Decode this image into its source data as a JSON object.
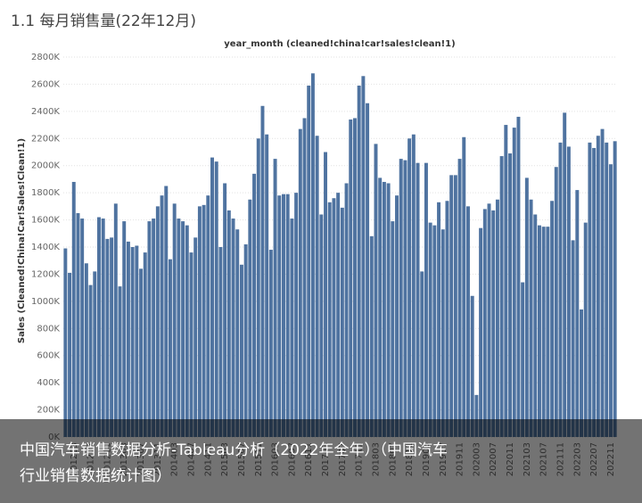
{
  "page_title": "1.1 每月销售量(22年12月)",
  "chart_data": {
    "type": "bar",
    "title": "year_month (cleaned!china!car!sales!clean!1)",
    "y_label": "Sales (Cleaned!China!Car!Sales!Clean!1)",
    "color": "#4f73a0",
    "grid": true,
    "ylim": [
      0,
      2800000
    ],
    "yticks": [
      {
        "value": 0,
        "label": "0K"
      },
      {
        "value": 200000,
        "label": "200K"
      },
      {
        "value": 400000,
        "label": "400K"
      },
      {
        "value": 600000,
        "label": "600K"
      },
      {
        "value": 800000,
        "label": "800K"
      },
      {
        "value": 1000000,
        "label": "1000K"
      },
      {
        "value": 1200000,
        "label": "1200K"
      },
      {
        "value": 1400000,
        "label": "1400K"
      },
      {
        "value": 1600000,
        "label": "1600K"
      },
      {
        "value": 1800000,
        "label": "1800K"
      },
      {
        "value": 2000000,
        "label": "2000K"
      },
      {
        "value": 2200000,
        "label": "2200K"
      },
      {
        "value": 2400000,
        "label": "2400K"
      },
      {
        "value": 2600000,
        "label": "2600K"
      },
      {
        "value": 2800000,
        "label": "2800K"
      }
    ],
    "categories": [
      null,
      null,
      "201203",
      null,
      null,
      null,
      "201207",
      null,
      null,
      null,
      "201211",
      null,
      null,
      null,
      "201303",
      null,
      null,
      null,
      "201307",
      null,
      null,
      null,
      "201311",
      null,
      null,
      null,
      "201403",
      null,
      null,
      null,
      "201407",
      null,
      null,
      null,
      "201411",
      null,
      null,
      null,
      "201503",
      null,
      null,
      null,
      "201507",
      null,
      null,
      null,
      "201511",
      null,
      null,
      null,
      "201603",
      null,
      null,
      null,
      "201607",
      null,
      null,
      null,
      "201611",
      null,
      null,
      null,
      "201703",
      null,
      null,
      null,
      "201707",
      null,
      null,
      null,
      "201711",
      null,
      null,
      null,
      "201803",
      null,
      null,
      null,
      "201807",
      null,
      null,
      null,
      "201811",
      null,
      null,
      null,
      "201903",
      null,
      null,
      null,
      "201907",
      null,
      null,
      null,
      "201911",
      null,
      null,
      null,
      "202003",
      null,
      null,
      null,
      "202007",
      null,
      null,
      null,
      "202011",
      null,
      null,
      null,
      "202103",
      null,
      null,
      null,
      "202107",
      null,
      null,
      null,
      "202111",
      null,
      null,
      null,
      "202203",
      null,
      null,
      null,
      "202207",
      null,
      null,
      null,
      "202211",
      null
    ],
    "values": [
      1390000,
      1210000,
      1880000,
      1650000,
      1610000,
      1280000,
      1120000,
      1220000,
      1620000,
      1610000,
      1460000,
      1470000,
      1720000,
      1110000,
      1590000,
      1440000,
      1400000,
      1410000,
      1240000,
      1360000,
      1590000,
      1610000,
      1700000,
      1780000,
      1850000,
      1310000,
      1720000,
      1610000,
      1590000,
      1560000,
      1360000,
      1470000,
      1700000,
      1710000,
      1780000,
      2060000,
      2030000,
      1400000,
      1870000,
      1670000,
      1610000,
      1530000,
      1270000,
      1420000,
      1750000,
      1940000,
      2200000,
      2440000,
      2230000,
      1380000,
      2050000,
      1780000,
      1790000,
      1790000,
      1610000,
      1800000,
      2270000,
      2350000,
      2590000,
      2680000,
      2220000,
      1640000,
      2100000,
      1730000,
      1760000,
      1800000,
      1690000,
      1870000,
      2340000,
      2350000,
      2590000,
      2660000,
      2460000,
      1480000,
      2160000,
      1910000,
      1880000,
      1870000,
      1590000,
      1780000,
      2050000,
      2040000,
      2200000,
      2230000,
      2020000,
      1220000,
      2020000,
      1580000,
      1560000,
      1730000,
      1530000,
      1740000,
      1930000,
      1930000,
      2050000,
      2210000,
      1700000,
      1040000,
      310000,
      1540000,
      1680000,
      1720000,
      1670000,
      1750000,
      2070000,
      2300000,
      2090000,
      2280000,
      2360000,
      1140000,
      1910000,
      1750000,
      1640000,
      1560000,
      1550000,
      1550000,
      1740000,
      1990000,
      2170000,
      2390000,
      2140000,
      1450000,
      1820000,
      940000,
      1580000,
      2170000,
      2130000,
      2220000,
      2270000,
      2170000,
      2010000,
      2180000
    ]
  },
  "overlay": {
    "lines": [
      "中国汽车销售数据分析-Tableau分析（2022年全年）（中国汽车",
      "行业销售数据统计图）"
    ]
  }
}
